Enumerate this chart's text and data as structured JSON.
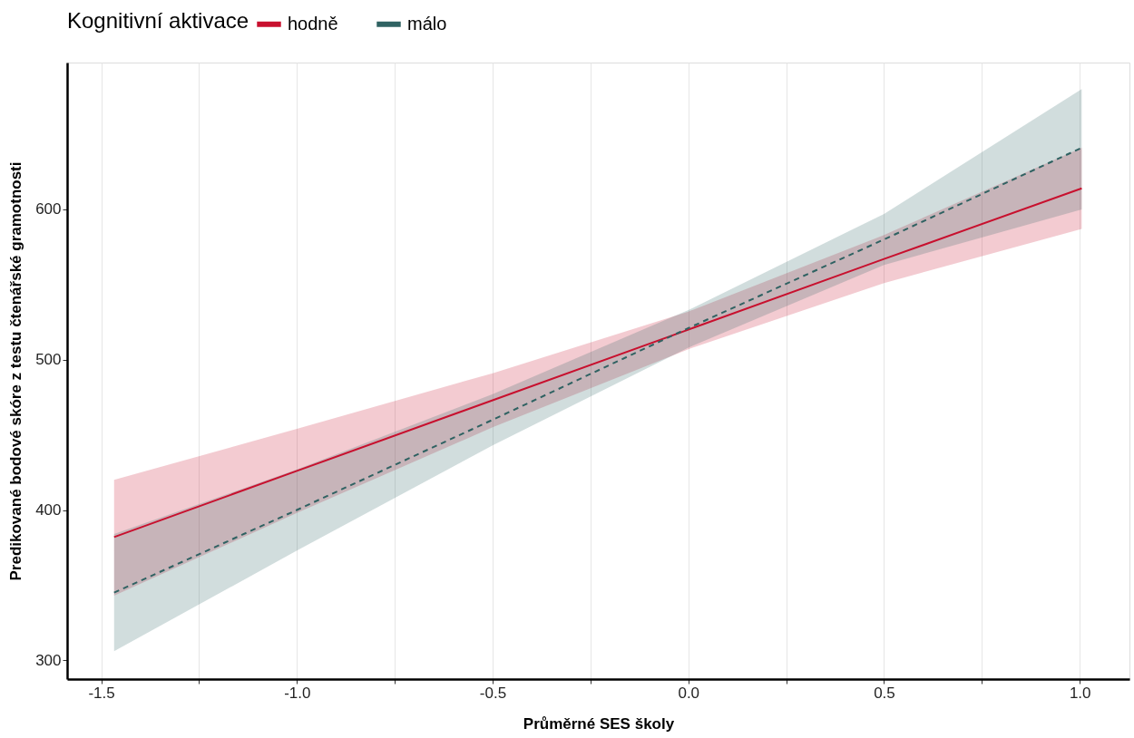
{
  "chart_data": {
    "type": "line",
    "xlabel": "Průměrné SES školy",
    "ylabel": "Predikované bodové skóre z testu čtenářské gramotnosti",
    "legend_title": "Kognitivní aktivace",
    "x": [
      -1.467,
      -1.0,
      -0.5,
      0.0,
      0.5,
      1.005
    ],
    "series": [
      {
        "name": "hodně",
        "color": "#c8102e",
        "line_style": "solid",
        "values": [
          382,
          426,
          473,
          520,
          567,
          614
        ],
        "lower": [
          343,
          398,
          455,
          507,
          551,
          587
        ],
        "upper": [
          420,
          454,
          491,
          532,
          583,
          641
        ]
      },
      {
        "name": "málo",
        "color": "#2f6262",
        "line_style": "dashed",
        "values": [
          345,
          400,
          460,
          521,
          580,
          641
        ],
        "lower": [
          306,
          373,
          443,
          508,
          563,
          600
        ],
        "upper": [
          384,
          427,
          477,
          533,
          597,
          680
        ]
      }
    ],
    "xlim": [
      -1.587,
      1.127
    ],
    "ylim": [
      287.5,
      697.7
    ],
    "xticks": [
      {
        "value": -1.5,
        "label": "-1.5"
      },
      {
        "value": -1.25,
        "label": null
      },
      {
        "value": -1.0,
        "label": "-1.0"
      },
      {
        "value": -0.75,
        "label": null
      },
      {
        "value": -0.5,
        "label": "-0.5"
      },
      {
        "value": -0.25,
        "label": null
      },
      {
        "value": 0.0,
        "label": "0.0"
      },
      {
        "value": 0.25,
        "label": null
      },
      {
        "value": 0.5,
        "label": "0.5"
      },
      {
        "value": 0.75,
        "label": null
      },
      {
        "value": 1.0,
        "label": "1.0"
      }
    ],
    "yticks": [
      300,
      400,
      500,
      600
    ],
    "grid": "x",
    "legend": "top",
    "marker": "none"
  }
}
